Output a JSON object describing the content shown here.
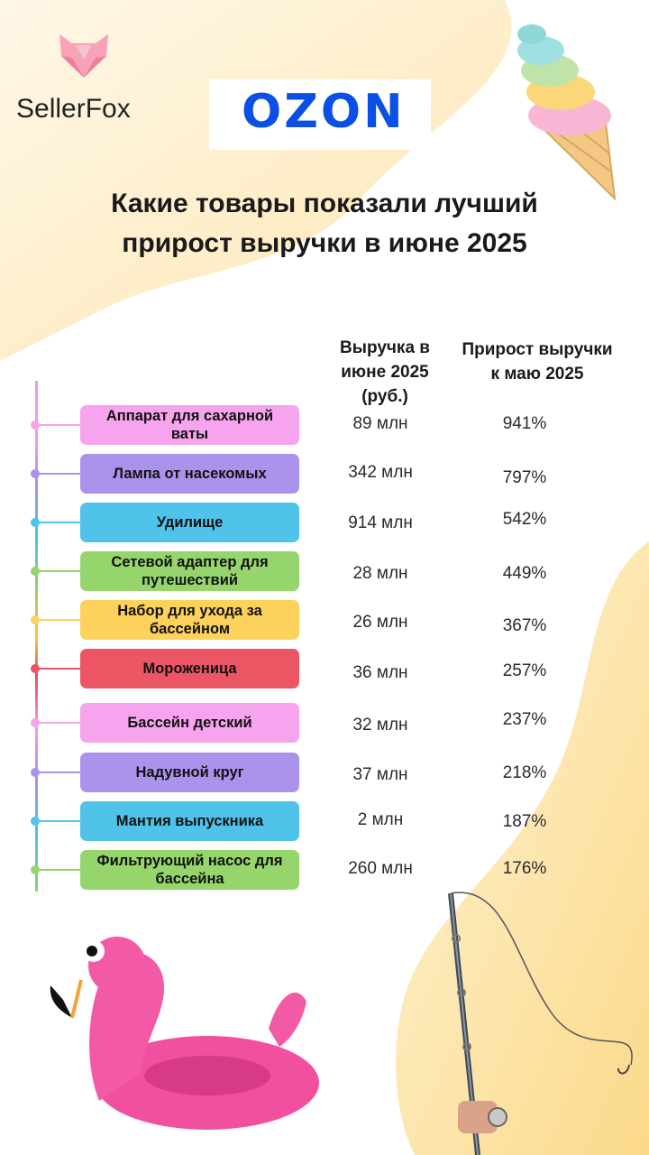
{
  "brand": {
    "name": "SellerFox"
  },
  "marketplace": {
    "name": "OZON"
  },
  "title": {
    "line1": "Какие товары показали лучший",
    "line2": "прирост выручки в июне 2025"
  },
  "columns": {
    "revenue": [
      "Выручка в",
      "июне 2025",
      "(руб.)"
    ],
    "growth": [
      "Прирост выручки",
      "к маю 2025"
    ]
  },
  "products": [
    {
      "name": "Аппарат для сахарной ваты",
      "revenue": "89 млн",
      "growth": "941%",
      "color": "#f7a4ee"
    },
    {
      "name": "Лампа от насекомых",
      "revenue": "342 млн",
      "growth": "797%",
      "color": "#ab93ec"
    },
    {
      "name": "Удилище",
      "revenue": "914 млн",
      "growth": "542%",
      "color": "#4fc3ea"
    },
    {
      "name": "Сетевой адаптер для путешествий",
      "revenue": "28 млн",
      "growth": "449%",
      "color": "#96d56c"
    },
    {
      "name": "Набор для ухода за бассейном",
      "revenue": "26 млн",
      "growth": "367%",
      "color": "#fcd25c"
    },
    {
      "name": "Мороженица",
      "revenue": "36 млн",
      "growth": "257%",
      "color": "#ec5563"
    },
    {
      "name": "Бассейн детский",
      "revenue": "32 млн",
      "growth": "237%",
      "color": "#f7a4ee"
    },
    {
      "name": "Надувной круг",
      "revenue": "37 млн",
      "growth": "218%",
      "color": "#ab93ec"
    },
    {
      "name": "Мантия выпускника",
      "revenue": "2 млн",
      "growth": "187%",
      "color": "#4fc3ea"
    },
    {
      "name": "Фильтрующий насос для бассейна",
      "revenue": "260 млн",
      "growth": "176%",
      "color": "#96d56c"
    }
  ],
  "colors": {
    "ozon_blue": "#0a4fe6",
    "background_accent": "#fdeec4"
  }
}
